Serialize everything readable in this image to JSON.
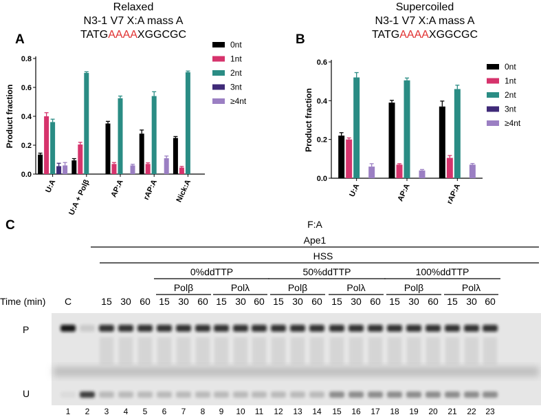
{
  "panel_a": {
    "letter": "A",
    "title_lines": [
      "Relaxed",
      "N3-1 V7 X:A mass A"
    ],
    "seq_prefix": "TATG",
    "seq_highlight": "AAAA",
    "seq_suffix": "XGGCGC"
  },
  "panel_b": {
    "letter": "B",
    "title_lines": [
      "Supercoiled",
      "N3-1 V7 X:A mass A"
    ],
    "seq_prefix": "TATG",
    "seq_highlight": "AAAA",
    "seq_suffix": "XGGCGC"
  },
  "colors": {
    "0nt": "#000000",
    "1nt": "#d6336c",
    "2nt": "#2a8c84",
    "3nt": "#3f2a78",
    ">=4nt": "#9b7fc3",
    "highlight": "#e03030"
  },
  "chart_data": [
    {
      "type": "bar",
      "panel": "A",
      "ylabel": "Product fraction",
      "xlabel": "",
      "ylim": [
        0,
        0.8
      ],
      "yticks": [
        "0.0",
        "0.2",
        "0.4",
        "0.6",
        "0.8"
      ],
      "categories": [
        "U:A",
        "U:A + Polβ",
        "AP:A",
        "rAP:A",
        "Nick:A"
      ],
      "legend_position": "top-right",
      "series": [
        {
          "name": "0nt",
          "color": "#000000",
          "values": [
            0.135,
            0.095,
            0.35,
            0.28,
            0.25
          ],
          "errors": [
            0.01,
            0.012,
            0.015,
            0.025,
            0.01
          ]
        },
        {
          "name": "1nt",
          "color": "#d6336c",
          "values": [
            0.4,
            0.205,
            0.07,
            0.07,
            0.045
          ],
          "errors": [
            0.025,
            0.015,
            0.01,
            0.008,
            0.008
          ]
        },
        {
          "name": "2nt",
          "color": "#2a8c84",
          "values": [
            0.36,
            0.7,
            0.525,
            0.54,
            0.705
          ],
          "errors": [
            0.02,
            0.008,
            0.015,
            0.03,
            0.008
          ]
        },
        {
          "name": "3nt",
          "color": "#3f2a78",
          "values": [
            0.055,
            null,
            null,
            null,
            null
          ],
          "errors": [
            0.02,
            null,
            null,
            null,
            null
          ]
        },
        {
          "name": "≥4nt",
          "color": "#9b7fc3",
          "values": [
            0.06,
            null,
            0.06,
            0.11,
            null
          ],
          "errors": [
            0.02,
            null,
            0.008,
            0.015,
            null
          ]
        }
      ]
    },
    {
      "type": "bar",
      "panel": "B",
      "ylabel": "Product fraction",
      "xlabel": "",
      "ylim": [
        0,
        0.6
      ],
      "yticks": [
        "0.0",
        "0.2",
        "0.4",
        "0.6"
      ],
      "categories": [
        "U:A",
        "AP:A",
        "rAP:A"
      ],
      "legend_position": "top-right",
      "series": [
        {
          "name": "0nt",
          "color": "#000000",
          "values": [
            0.22,
            0.39,
            0.37
          ],
          "errors": [
            0.015,
            0.012,
            0.028
          ]
        },
        {
          "name": "1nt",
          "color": "#d6336c",
          "values": [
            0.2,
            0.07,
            0.105
          ],
          "errors": [
            0.008,
            0.005,
            0.012
          ]
        },
        {
          "name": "2nt",
          "color": "#2a8c84",
          "values": [
            0.52,
            0.505,
            0.46
          ],
          "errors": [
            0.025,
            0.012,
            0.02
          ]
        },
        {
          "name": "3nt",
          "color": "#3f2a78",
          "values": [
            null,
            null,
            null
          ],
          "errors": [
            null,
            null,
            null
          ]
        },
        {
          "name": "≥4nt",
          "color": "#9b7fc3",
          "values": [
            0.06,
            0.04,
            0.07
          ],
          "errors": [
            0.015,
            0.005,
            0.006
          ]
        }
      ]
    }
  ],
  "panel_c": {
    "letter": "C",
    "header_fa": "F:A",
    "header_ape1": "Ape1",
    "header_hss": "HSS",
    "groups": [
      "0%ddTTP",
      "50%ddTTP",
      "100%ddTTP"
    ],
    "polymerases": [
      "Polβ",
      "Polλ",
      "Polβ",
      "Polλ",
      "Polβ",
      "Polλ"
    ],
    "time_label": "Time (min)",
    "time_values": [
      "C",
      "",
      "15",
      "30",
      "60",
      "15",
      "30",
      "60",
      "15",
      "30",
      "60",
      "15",
      "30",
      "60",
      "15",
      "30",
      "60",
      "15",
      "30",
      "60",
      "15",
      "30",
      "60"
    ],
    "lane_numbers": [
      "1",
      "2",
      "3",
      "4",
      "5",
      "6",
      "7",
      "8",
      "9",
      "10",
      "11",
      "12",
      "13",
      "14",
      "15",
      "16",
      "17",
      "18",
      "19",
      "20",
      "21",
      "22",
      "23"
    ],
    "band_p_label": "P",
    "band_u_label": "U"
  }
}
